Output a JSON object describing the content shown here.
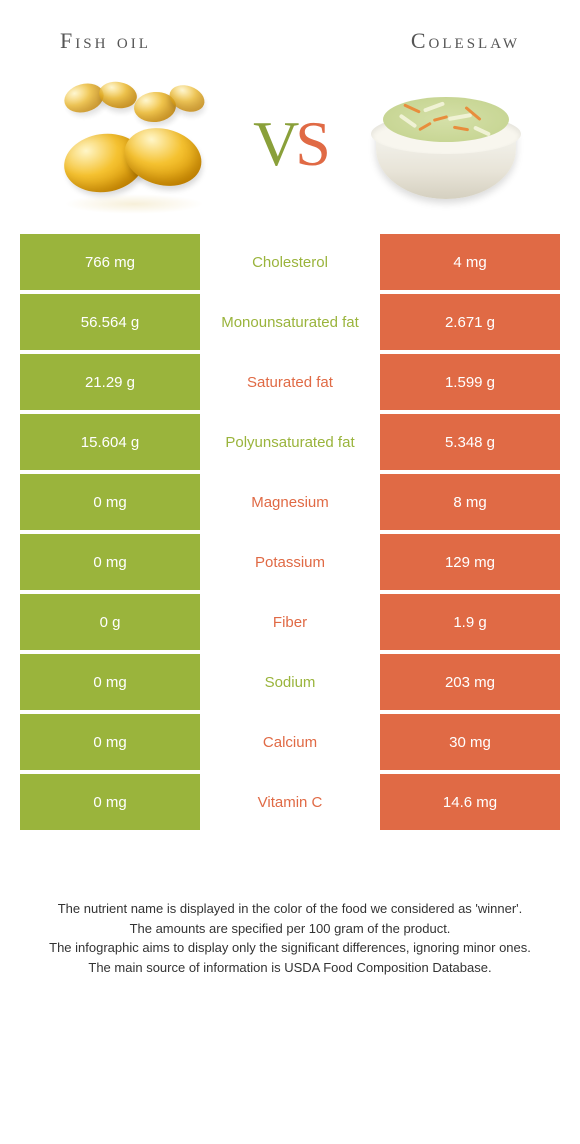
{
  "header": {
    "left_title": "Fish oil",
    "right_title": "Coleslaw"
  },
  "vs": {
    "v": "V",
    "s": "S"
  },
  "colors": {
    "left_bg": "#9ab43c",
    "right_bg": "#e06a45",
    "left_text": "#9ab43c",
    "right_text": "#e06a45"
  },
  "rows": [
    {
      "left": "766 mg",
      "label": "Cholesterol",
      "right": "4 mg",
      "winner": "left"
    },
    {
      "left": "56.564 g",
      "label": "Monounsaturated fat",
      "right": "2.671 g",
      "winner": "left"
    },
    {
      "left": "21.29 g",
      "label": "Saturated fat",
      "right": "1.599 g",
      "winner": "right"
    },
    {
      "left": "15.604 g",
      "label": "Polyunsaturated fat",
      "right": "5.348 g",
      "winner": "left"
    },
    {
      "left": "0 mg",
      "label": "Magnesium",
      "right": "8 mg",
      "winner": "right"
    },
    {
      "left": "0 mg",
      "label": "Potassium",
      "right": "129 mg",
      "winner": "right"
    },
    {
      "left": "0 g",
      "label": "Fiber",
      "right": "1.9 g",
      "winner": "right"
    },
    {
      "left": "0 mg",
      "label": "Sodium",
      "right": "203 mg",
      "winner": "left"
    },
    {
      "left": "0 mg",
      "label": "Calcium",
      "right": "30 mg",
      "winner": "right"
    },
    {
      "left": "0 mg",
      "label": "Vitamin C",
      "right": "14.6 mg",
      "winner": "right"
    }
  ],
  "footer": {
    "line1": "The nutrient name is displayed in the color of the food we considered as 'winner'.",
    "line2": "The amounts are specified per 100 gram of the product.",
    "line3": "The infographic aims to display only the significant differences, ignoring minor ones.",
    "line4": "The main source of information is USDA Food Composition Database."
  }
}
